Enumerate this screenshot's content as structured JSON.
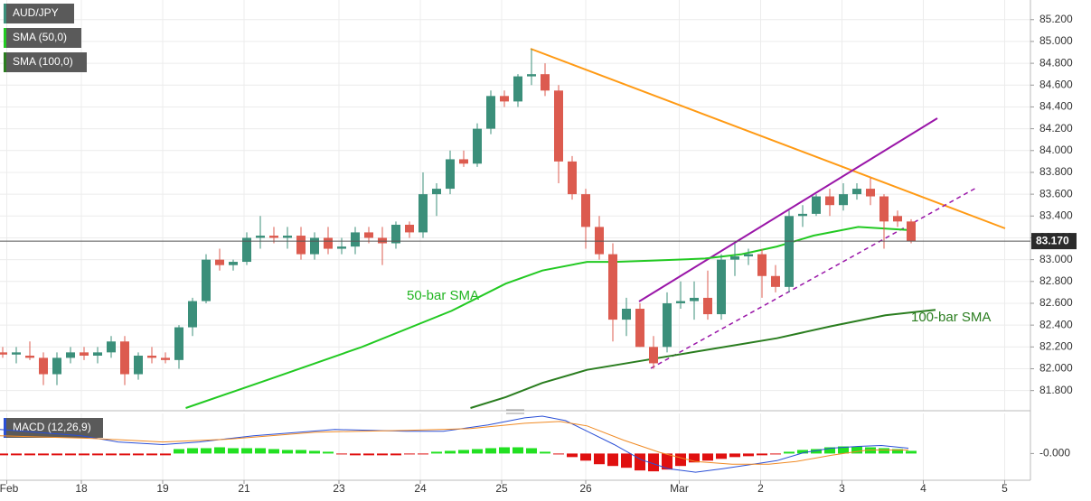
{
  "chart_data": [
    {
      "type": "candlestick",
      "xlim": [
        -0.2,
        75.8
      ],
      "xticks": [
        {
          "value": 0.3,
          "label": "Feb"
        },
        {
          "value": 5.8,
          "label": "18"
        },
        {
          "value": 11.8,
          "label": "19"
        },
        {
          "value": 17.8,
          "label": "21"
        },
        {
          "value": 24.8,
          "label": "23"
        },
        {
          "value": 30.8,
          "label": "24"
        },
        {
          "value": 36.8,
          "label": "25"
        },
        {
          "value": 43,
          "label": "26"
        },
        {
          "value": 49.9,
          "label": "Mar"
        },
        {
          "value": 55.9,
          "label": "2"
        },
        {
          "value": 61.9,
          "label": "3"
        },
        {
          "value": 67.9,
          "label": "4"
        },
        {
          "value": 73.9,
          "label": "5"
        }
      ],
      "ylim": [
        81.64,
        85.38
      ],
      "yticks": [
        {
          "value": 81.8,
          "label": "81.800"
        },
        {
          "value": 82.0,
          "label": "82.000"
        },
        {
          "value": 82.2,
          "label": "82.200"
        },
        {
          "value": 82.4,
          "label": "82.400"
        },
        {
          "value": 82.6,
          "label": "82.600"
        },
        {
          "value": 82.8,
          "label": "82.800"
        },
        {
          "value": 83.0,
          "label": "83.000"
        },
        {
          "value": 83.2,
          "label": "83.200"
        },
        {
          "value": 83.4,
          "label": "83.400"
        },
        {
          "value": 83.6,
          "label": "83.600"
        },
        {
          "value": 83.8,
          "label": "83.800"
        },
        {
          "value": 84.0,
          "label": "84.000"
        },
        {
          "value": 84.2,
          "label": "84.200"
        },
        {
          "value": 84.4,
          "label": "84.400"
        },
        {
          "value": 84.6,
          "label": "84.600"
        },
        {
          "value": 84.8,
          "label": "84.800"
        },
        {
          "value": 85.0,
          "label": "85.000"
        },
        {
          "value": 85.2,
          "label": "85.200"
        }
      ],
      "grid": true,
      "series": [
        {
          "name": "AUD/JPY",
          "up_color": "#3b8f7a",
          "down_color": "#dc5b4f",
          "open": [
            82.15,
            82.13,
            82.12,
            82.1,
            81.95,
            82.1,
            82.15,
            82.12,
            82.15,
            82.25,
            81.95,
            82.12,
            82.1,
            82.08,
            82.38,
            82.62,
            83.0,
            82.95,
            82.98,
            83.2,
            83.22,
            83.2,
            83.22,
            83.05,
            83.2,
            83.1,
            83.12,
            83.25,
            83.2,
            83.15,
            83.32,
            83.25,
            83.6,
            83.65,
            83.92,
            83.88,
            84.2,
            84.5,
            84.45,
            84.68,
            84.7,
            84.55,
            83.9,
            83.6,
            83.3,
            83.05,
            82.45,
            82.55,
            82.2,
            82.2,
            82.6,
            82.62,
            82.65,
            82.5,
            83.0,
            83.03,
            83.05,
            82.85,
            82.75,
            83.4,
            83.42,
            83.58,
            83.5,
            83.6,
            83.65,
            83.58,
            83.4,
            83.35
          ],
          "high": [
            82.2,
            82.2,
            82.25,
            82.15,
            82.15,
            82.2,
            82.2,
            82.2,
            82.3,
            82.3,
            82.15,
            82.2,
            82.15,
            82.4,
            82.65,
            83.05,
            83.1,
            83.0,
            83.25,
            83.4,
            83.3,
            83.3,
            83.3,
            83.25,
            83.3,
            83.2,
            83.3,
            83.3,
            83.3,
            83.35,
            83.35,
            83.8,
            83.7,
            84.0,
            84.0,
            84.25,
            84.55,
            84.55,
            84.7,
            84.93,
            84.8,
            84.6,
            83.95,
            83.65,
            83.4,
            83.15,
            82.65,
            82.6,
            82.3,
            82.7,
            82.8,
            82.8,
            82.9,
            83.05,
            83.15,
            83.1,
            83.1,
            82.95,
            83.45,
            83.5,
            83.6,
            83.65,
            83.7,
            83.7,
            83.75,
            83.6,
            83.45,
            83.37
          ],
          "low": [
            82.1,
            82.05,
            82.08,
            81.85,
            81.85,
            82.05,
            82.08,
            82.05,
            82.1,
            81.85,
            81.9,
            82.05,
            82.05,
            82.0,
            82.3,
            82.6,
            82.9,
            82.9,
            82.95,
            83.1,
            83.15,
            83.1,
            83.0,
            83.0,
            83.05,
            83.05,
            83.05,
            83.15,
            82.95,
            83.1,
            83.2,
            83.2,
            83.4,
            83.6,
            83.85,
            83.85,
            84.15,
            84.4,
            84.4,
            84.6,
            84.5,
            83.7,
            83.55,
            83.1,
            83.0,
            82.25,
            82.3,
            82.2,
            82.0,
            82.15,
            82.55,
            82.45,
            82.45,
            82.45,
            82.85,
            82.95,
            82.65,
            82.7,
            82.7,
            83.3,
            83.4,
            83.4,
            83.45,
            83.55,
            83.5,
            83.1,
            83.3,
            83.15
          ],
          "close": [
            82.13,
            82.15,
            82.1,
            81.95,
            82.1,
            82.15,
            82.12,
            82.15,
            82.25,
            81.95,
            82.12,
            82.1,
            82.08,
            82.38,
            82.62,
            83.0,
            82.95,
            82.98,
            83.2,
            83.22,
            83.2,
            83.22,
            83.05,
            83.2,
            83.1,
            83.12,
            83.25,
            83.2,
            83.15,
            83.32,
            83.25,
            83.6,
            83.65,
            83.92,
            83.88,
            84.2,
            84.5,
            84.45,
            84.68,
            84.7,
            84.55,
            83.9,
            83.6,
            83.3,
            83.05,
            82.45,
            82.55,
            82.2,
            82.05,
            82.6,
            82.62,
            82.65,
            82.5,
            83.0,
            83.03,
            83.05,
            82.85,
            82.75,
            83.4,
            83.42,
            83.58,
            83.5,
            83.6,
            83.65,
            83.58,
            83.35,
            83.35,
            83.17
          ]
        }
      ],
      "lines": [
        {
          "name": "SMA (50,0)",
          "color": "#22c922",
          "x": [
            13.5,
            19.8,
            26.5,
            33.1,
            37.1,
            39.8,
            43.1,
            45.1,
            47.8,
            51.8,
            54.5,
            57.1,
            59.8,
            63.1,
            67
          ],
          "values": [
            81.64,
            81.91,
            82.2,
            82.53,
            82.78,
            82.9,
            82.98,
            82.98,
            82.99,
            83.01,
            83.05,
            83.12,
            83.22,
            83.3,
            83.27
          ]
        },
        {
          "name": "SMA (100,0)",
          "color": "#2a7d1f",
          "x": [
            34.5,
            37.1,
            39.8,
            43.1,
            46.5,
            51.8,
            57.1,
            61.1,
            65.1,
            68.8
          ],
          "values": [
            81.64,
            81.74,
            81.87,
            81.99,
            82.06,
            82.17,
            82.28,
            82.39,
            82.49,
            82.54
          ]
        }
      ],
      "annotations": [
        "50-bar SMA",
        "100-bar SMA"
      ],
      "last_price": {
        "value": 83.17,
        "label": "83.170"
      }
    },
    {
      "type": "macd",
      "title": "MACD (12,26,9)",
      "ylim": [
        -0.3,
        0.45
      ],
      "yticks": [
        {
          "value": 0,
          "label": "-0.000"
        }
      ],
      "histogram": {
        "up_color": "#22e022",
        "down_color": "#e01010",
        "values": [
          -0.02,
          -0.02,
          -0.02,
          -0.02,
          -0.02,
          -0.02,
          -0.02,
          -0.02,
          -0.02,
          -0.02,
          -0.02,
          -0.02,
          -0.02,
          0.05,
          0.06,
          0.06,
          0.07,
          0.06,
          0.06,
          0.06,
          0.05,
          0.04,
          0.04,
          0.03,
          0.02,
          -0.01,
          -0.02,
          -0.02,
          -0.02,
          -0.02,
          -0.01,
          -0.01,
          0.02,
          0.03,
          0.04,
          0.05,
          0.06,
          0.07,
          0.07,
          0.06,
          0.02,
          -0.01,
          -0.04,
          -0.08,
          -0.12,
          -0.14,
          -0.16,
          -0.19,
          -0.2,
          -0.18,
          -0.14,
          -0.1,
          -0.08,
          -0.06,
          -0.04,
          -0.03,
          -0.02,
          -0.01,
          0.02,
          0.04,
          0.05,
          0.07,
          0.08,
          0.08,
          0.07,
          0.06,
          0.05,
          0.03
        ]
      },
      "lines": [
        {
          "color": "#2a4fd6",
          "x": [
            -0.2,
            5.8,
            8.5,
            11.8,
            14.5,
            18.5,
            24.5,
            29.8,
            32.5,
            35.8,
            38.5,
            39.8,
            41.5,
            43.1,
            45.1,
            47.1,
            49.1,
            51.1,
            53.1,
            55.8,
            57.1,
            59.1,
            61.1,
            63.1,
            64.8,
            66.8
          ],
          "values": [
            0.27,
            0.2,
            0.13,
            0.1,
            0.13,
            0.2,
            0.27,
            0.25,
            0.25,
            0.32,
            0.4,
            0.42,
            0.37,
            0.25,
            0.1,
            -0.07,
            -0.17,
            -0.21,
            -0.17,
            -0.11,
            -0.08,
            0.01,
            0.06,
            0.08,
            0.09,
            0.06
          ]
        },
        {
          "color": "#f08a24",
          "x": [
            -0.2,
            6.5,
            11.8,
            16.5,
            23.1,
            29.8,
            34.5,
            38.5,
            41.1,
            43.1,
            45.8,
            48.5,
            51.1,
            53.8,
            56.5,
            58.5,
            61.1,
            63.8,
            66.8
          ],
          "values": [
            0.2,
            0.17,
            0.13,
            0.16,
            0.24,
            0.26,
            0.28,
            0.34,
            0.36,
            0.31,
            0.15,
            0.01,
            -0.09,
            -0.12,
            -0.12,
            -0.09,
            -0.02,
            0.04,
            0.04
          ]
        }
      ]
    }
  ]
}
